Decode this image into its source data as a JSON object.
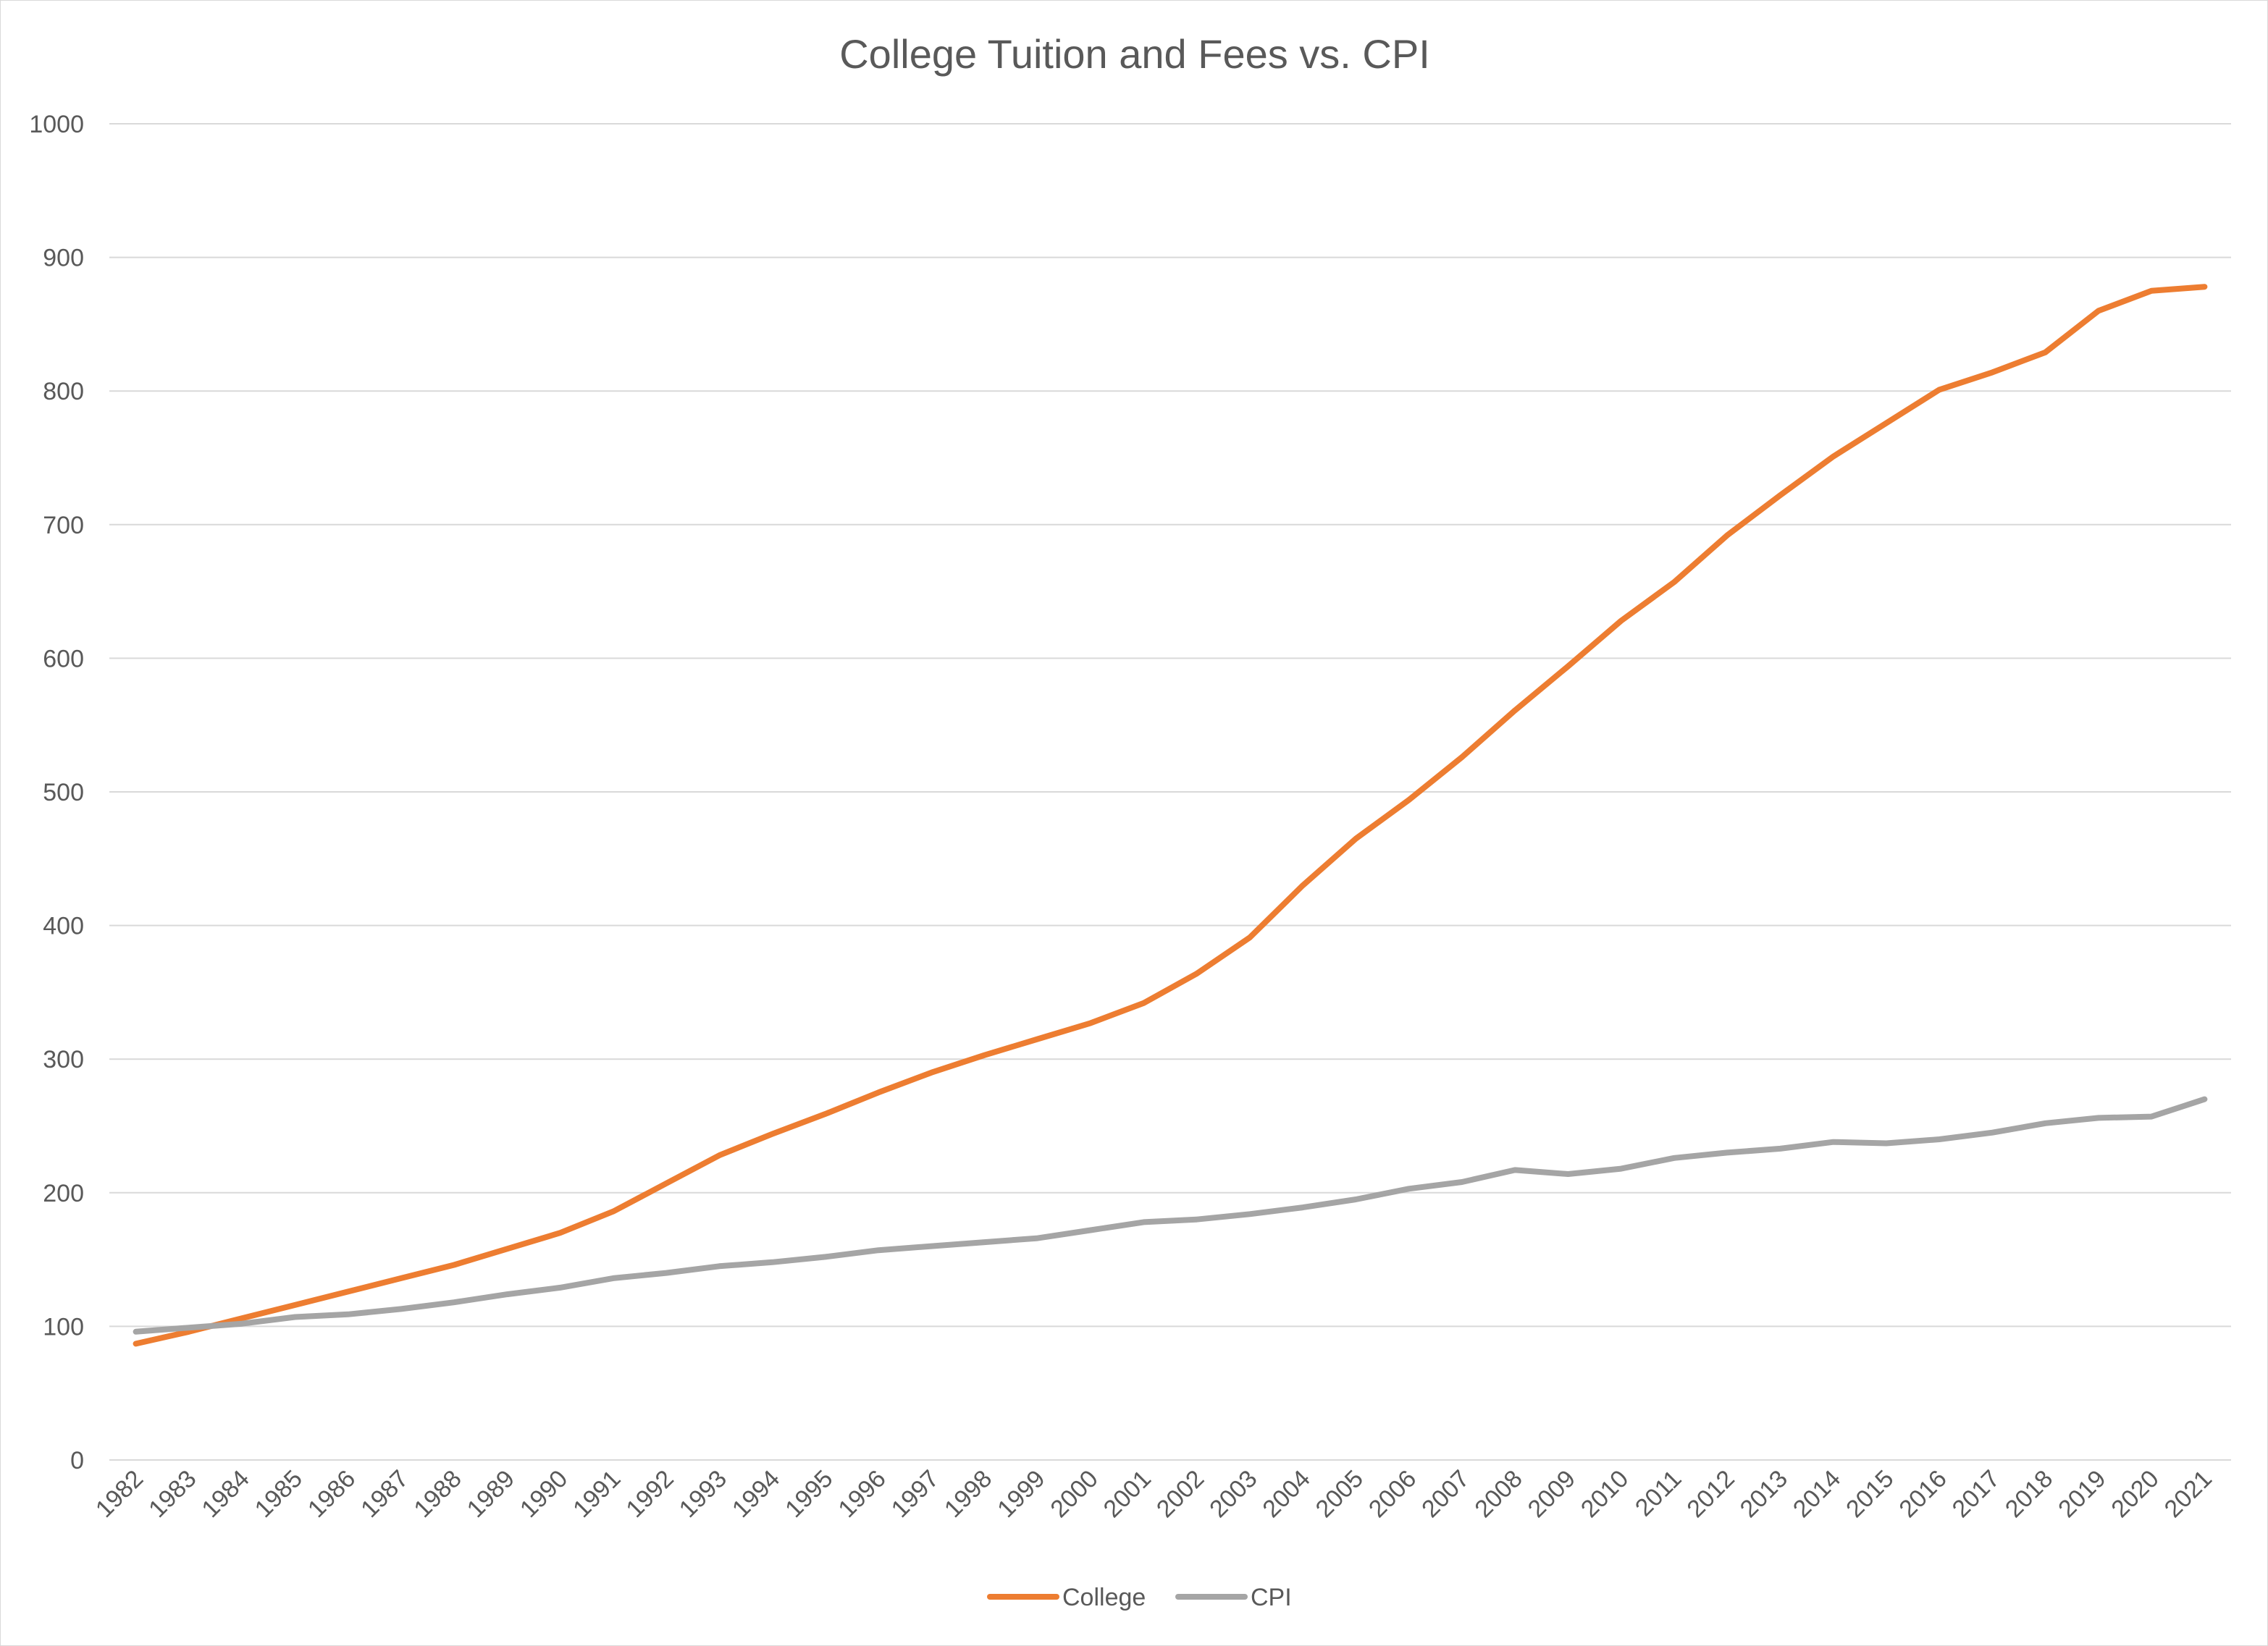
{
  "chart_data": {
    "type": "line",
    "title": "College Tuition and Fees vs. CPI",
    "xlabel": "",
    "ylabel": "",
    "ylim": [
      0,
      1000
    ],
    "yticks": [
      0,
      100,
      200,
      300,
      400,
      500,
      600,
      700,
      800,
      900,
      1000
    ],
    "grid": true,
    "legend_position": "bottom",
    "categories": [
      "1982",
      "1983",
      "1984",
      "1985",
      "1986",
      "1987",
      "1988",
      "1989",
      "1990",
      "1991",
      "1992",
      "1993",
      "1994",
      "1995",
      "1996",
      "1997",
      "1998",
      "1999",
      "2000",
      "2001",
      "2002",
      "2003",
      "2004",
      "2005",
      "2006",
      "2007",
      "2008",
      "2009",
      "2010",
      "2011",
      "2012",
      "2013",
      "2014",
      "2015",
      "2016",
      "2017",
      "2018",
      "2019",
      "2020",
      "2021"
    ],
    "series": [
      {
        "name": "College",
        "color": "#ED7D31",
        "values": [
          87,
          96,
          106,
          116,
          126,
          136,
          146,
          158,
          170,
          186,
          207,
          228,
          244,
          259,
          275,
          290,
          303,
          315,
          327,
          342,
          364,
          391,
          430,
          465,
          494,
          526,
          561,
          594,
          628,
          657,
          692,
          722,
          751,
          776,
          801,
          814,
          829,
          860,
          875,
          878
        ]
      },
      {
        "name": "CPI",
        "color": "#A5A5A5",
        "values": [
          96,
          99,
          102,
          107,
          109,
          113,
          118,
          124,
          129,
          136,
          140,
          145,
          148,
          152,
          157,
          160,
          163,
          166,
          172,
          178,
          180,
          184,
          189,
          195,
          203,
          208,
          217,
          214,
          218,
          226,
          230,
          233,
          238,
          237,
          240,
          245,
          252,
          256,
          257,
          270
        ]
      }
    ]
  }
}
